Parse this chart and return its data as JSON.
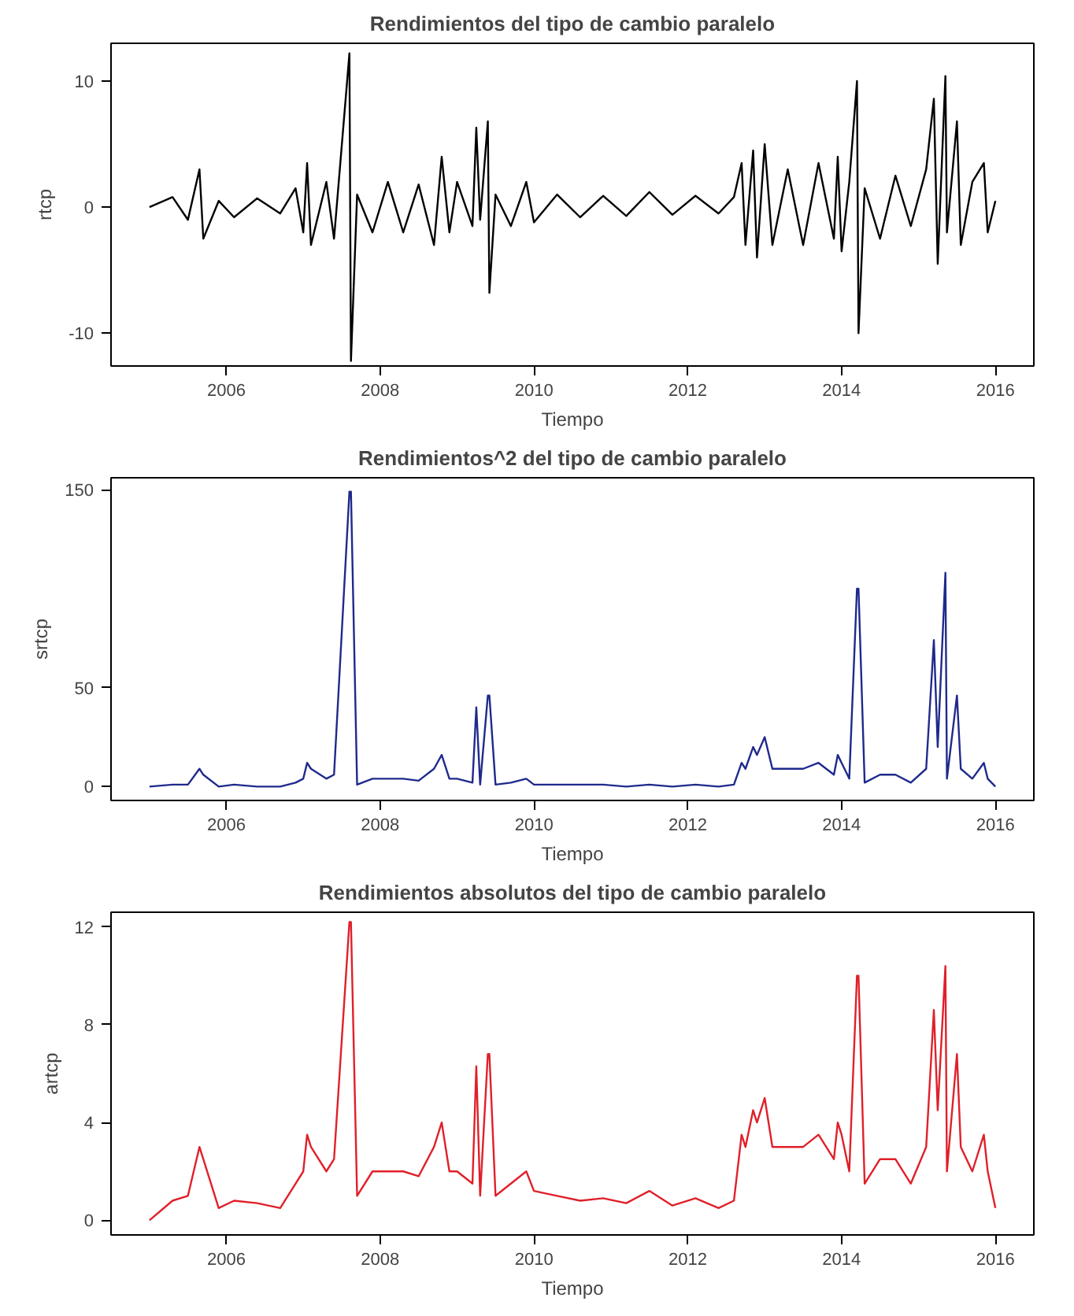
{
  "chart_data": [
    {
      "type": "line",
      "title": "Rendimientos del tipo de cambio paralelo",
      "xlabel": "Tiempo",
      "ylabel": "rtcp",
      "xlim": [
        2004.5,
        2016.5
      ],
      "xticks": [
        2006,
        2008,
        2010,
        2012,
        2014,
        2016
      ],
      "ylim": [
        -12.6,
        13
      ],
      "yticks": [
        -10,
        0,
        10
      ],
      "grid": false,
      "x": [
        2005.0,
        2005.3,
        2005.5,
        2005.65,
        2005.7,
        2005.9,
        2006.1,
        2006.4,
        2006.7,
        2006.9,
        2007.0,
        2007.05,
        2007.1,
        2007.3,
        2007.4,
        2007.6,
        2007.62,
        2007.7,
        2007.9,
        2008.1,
        2008.3,
        2008.5,
        2008.7,
        2008.8,
        2008.9,
        2009.0,
        2009.2,
        2009.25,
        2009.3,
        2009.4,
        2009.42,
        2009.5,
        2009.7,
        2009.9,
        2010.0,
        2010.3,
        2010.6,
        2010.9,
        2011.2,
        2011.5,
        2011.8,
        2012.1,
        2012.4,
        2012.6,
        2012.7,
        2012.75,
        2012.85,
        2012.9,
        2013.0,
        2013.1,
        2013.3,
        2013.5,
        2013.7,
        2013.9,
        2013.95,
        2014.0,
        2014.1,
        2014.2,
        2014.22,
        2014.3,
        2014.5,
        2014.7,
        2014.9,
        2015.1,
        2015.2,
        2015.25,
        2015.35,
        2015.37,
        2015.5,
        2015.55,
        2015.7,
        2015.85,
        2015.9,
        2016.0
      ],
      "series": [
        {
          "color": "#000000",
          "values": [
            0,
            0.8,
            -1,
            3,
            -2.5,
            0.5,
            -0.8,
            0.7,
            -0.5,
            1.5,
            -2,
            3.5,
            -3,
            2,
            -2.5,
            12.2,
            -12.2,
            1,
            -2,
            2,
            -2,
            1.8,
            -3,
            4,
            -2,
            2,
            -1.5,
            6.3,
            -1,
            6.8,
            -6.8,
            1,
            -1.5,
            2,
            -1.2,
            1,
            -0.8,
            0.9,
            -0.7,
            1.2,
            -0.6,
            0.9,
            -0.5,
            0.8,
            3.5,
            -3,
            4.5,
            -4,
            5,
            -3,
            3,
            -3,
            3.5,
            -2.5,
            4,
            -3.5,
            2,
            10,
            -10,
            1.5,
            -2.5,
            2.5,
            -1.5,
            3,
            8.6,
            -4.5,
            10.4,
            -2,
            6.8,
            -3,
            2,
            3.5,
            -2,
            0.5
          ]
        }
      ]
    },
    {
      "type": "line",
      "title": "Rendimientos^2 del tipo de cambio paralelo",
      "xlabel": "Tiempo",
      "ylabel": "srtcp",
      "xlim": [
        2004.5,
        2016.5
      ],
      "xticks": [
        2006,
        2008,
        2010,
        2012,
        2014,
        2016
      ],
      "ylim": [
        -7,
        156
      ],
      "yticks": [
        0,
        50,
        150
      ],
      "grid": false,
      "x": [
        2005.0,
        2005.3,
        2005.5,
        2005.65,
        2005.7,
        2005.9,
        2006.1,
        2006.4,
        2006.7,
        2006.9,
        2007.0,
        2007.05,
        2007.1,
        2007.3,
        2007.4,
        2007.6,
        2007.62,
        2007.7,
        2007.9,
        2008.1,
        2008.3,
        2008.5,
        2008.7,
        2008.8,
        2008.9,
        2009.0,
        2009.2,
        2009.25,
        2009.3,
        2009.4,
        2009.42,
        2009.5,
        2009.7,
        2009.9,
        2010.0,
        2010.3,
        2010.6,
        2010.9,
        2011.2,
        2011.5,
        2011.8,
        2012.1,
        2012.4,
        2012.6,
        2012.7,
        2012.75,
        2012.85,
        2012.9,
        2013.0,
        2013.1,
        2013.3,
        2013.5,
        2013.7,
        2013.9,
        2013.95,
        2014.0,
        2014.1,
        2014.2,
        2014.22,
        2014.3,
        2014.5,
        2014.7,
        2014.9,
        2015.1,
        2015.2,
        2015.25,
        2015.35,
        2015.37,
        2015.5,
        2015.55,
        2015.7,
        2015.85,
        2015.9,
        2016.0
      ],
      "series": [
        {
          "color": "#1f2a8c",
          "values": [
            0,
            1,
            1,
            9,
            6,
            0,
            1,
            0,
            0,
            2,
            4,
            12,
            9,
            4,
            6,
            149,
            149,
            1,
            4,
            4,
            4,
            3,
            9,
            16,
            4,
            4,
            2,
            40,
            1,
            46,
            46,
            1,
            2,
            4,
            1,
            1,
            1,
            1,
            0,
            1,
            0,
            1,
            0,
            1,
            12,
            9,
            20,
            16,
            25,
            9,
            9,
            9,
            12,
            6,
            16,
            12,
            4,
            100,
            100,
            2,
            6,
            6,
            2,
            9,
            74,
            20,
            108,
            4,
            46,
            9,
            4,
            12,
            4,
            0
          ]
        }
      ]
    },
    {
      "type": "line",
      "title": "Rendimientos absolutos del tipo de cambio paralelo",
      "xlabel": "Tiempo",
      "ylabel": "artcp",
      "xlim": [
        2004.5,
        2016.5
      ],
      "xticks": [
        2006,
        2008,
        2010,
        2012,
        2014,
        2016
      ],
      "ylim": [
        -0.6,
        12.6
      ],
      "yticks": [
        0,
        4,
        8,
        12
      ],
      "grid": false,
      "x": [
        2005.0,
        2005.3,
        2005.5,
        2005.65,
        2005.7,
        2005.9,
        2006.1,
        2006.4,
        2006.7,
        2006.9,
        2007.0,
        2007.05,
        2007.1,
        2007.3,
        2007.4,
        2007.6,
        2007.62,
        2007.7,
        2007.9,
        2008.1,
        2008.3,
        2008.5,
        2008.7,
        2008.8,
        2008.9,
        2009.0,
        2009.2,
        2009.25,
        2009.3,
        2009.4,
        2009.42,
        2009.5,
        2009.7,
        2009.9,
        2010.0,
        2010.3,
        2010.6,
        2010.9,
        2011.2,
        2011.5,
        2011.8,
        2012.1,
        2012.4,
        2012.6,
        2012.7,
        2012.75,
        2012.85,
        2012.9,
        2013.0,
        2013.1,
        2013.3,
        2013.5,
        2013.7,
        2013.9,
        2013.95,
        2014.0,
        2014.1,
        2014.2,
        2014.22,
        2014.3,
        2014.5,
        2014.7,
        2014.9,
        2015.1,
        2015.2,
        2015.25,
        2015.35,
        2015.37,
        2015.5,
        2015.55,
        2015.7,
        2015.85,
        2015.9,
        2016.0
      ],
      "series": [
        {
          "color": "#e0202a",
          "values": [
            0,
            0.8,
            1,
            3,
            2.5,
            0.5,
            0.8,
            0.7,
            0.5,
            1.5,
            2,
            3.5,
            3,
            2,
            2.5,
            12.2,
            12.2,
            1,
            2,
            2,
            2,
            1.8,
            3,
            4,
            2,
            2,
            1.5,
            6.3,
            1,
            6.8,
            6.8,
            1,
            1.5,
            2,
            1.2,
            1,
            0.8,
            0.9,
            0.7,
            1.2,
            0.6,
            0.9,
            0.5,
            0.8,
            3.5,
            3,
            4.5,
            4,
            5,
            3,
            3,
            3,
            3.5,
            2.5,
            4,
            3.5,
            2,
            10,
            10,
            1.5,
            2.5,
            2.5,
            1.5,
            3,
            8.6,
            4.5,
            10.4,
            2,
            6.8,
            3,
            2,
            3.5,
            2,
            0.5
          ]
        }
      ]
    }
  ]
}
